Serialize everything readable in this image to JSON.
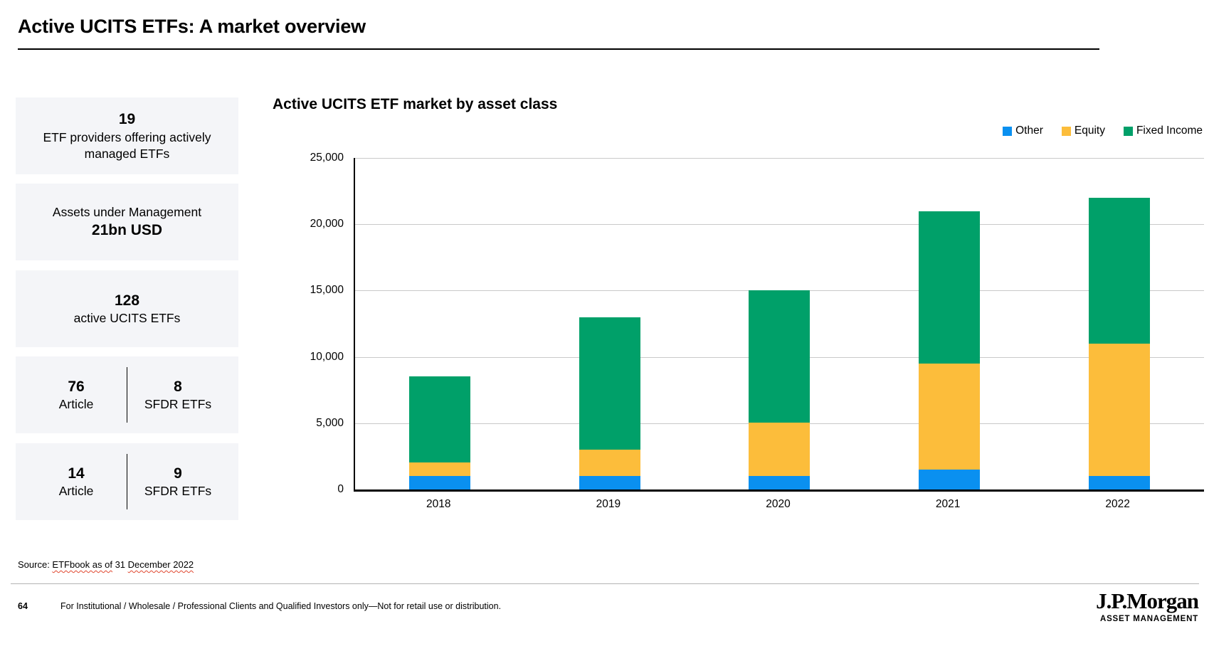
{
  "header": {
    "title": "Active UCITS ETFs: A market overview"
  },
  "stats": [
    {
      "value": "19",
      "label": "ETF providers offering actively managed ETFs"
    },
    {
      "label": "Assets under Management",
      "value": "21bn USD"
    },
    {
      "value": "128",
      "label": "active UCITS ETFs"
    },
    {
      "left": {
        "value": "76",
        "label": "Article"
      },
      "right": {
        "value": "8",
        "label": "SFDR ETFs"
      }
    },
    {
      "left": {
        "value": "14",
        "label": "Article"
      },
      "right": {
        "value": "9",
        "label": "SFDR ETFs"
      }
    }
  ],
  "chart_data": {
    "type": "bar",
    "stacked": true,
    "title": "Active UCITS ETF market by asset class",
    "categories": [
      "2018",
      "2019",
      "2020",
      "2021",
      "2022"
    ],
    "series": [
      {
        "name": "Other",
        "color": "#0a90f0",
        "values": [
          1000,
          1000,
          1000,
          1500,
          1000
        ]
      },
      {
        "name": "Equity",
        "color": "#fcbd3b",
        "values": [
          1000,
          2000,
          4000,
          8000,
          10000
        ]
      },
      {
        "name": "Fixed Income",
        "color": "#00a069",
        "values": [
          6500,
          10000,
          10000,
          11500,
          11000
        ]
      }
    ],
    "totals": [
      8500,
      13000,
      15000,
      21000,
      22000
    ],
    "ylim": [
      0,
      25000
    ],
    "ytick_step": 5000,
    "ytick_labels": [
      "0",
      "5,000",
      "10,000",
      "15,000",
      "20,000",
      "25,000"
    ],
    "grid": true,
    "legend_position": "top-right",
    "gridline_color": "#c9c9c9"
  },
  "source": {
    "prefix": "Source: ",
    "spellcheck_part1": "ETFbook as of",
    "middle": " 31 ",
    "spellcheck_part2": "December 2022"
  },
  "footer": {
    "page_number": "64",
    "disclaimer": "For Institutional / Wholesale / Professional Clients and Qualified Investors only—Not for retail use or distribution.",
    "brand_name": "J.P.Morgan",
    "brand_sub": "ASSET MANAGEMENT"
  }
}
